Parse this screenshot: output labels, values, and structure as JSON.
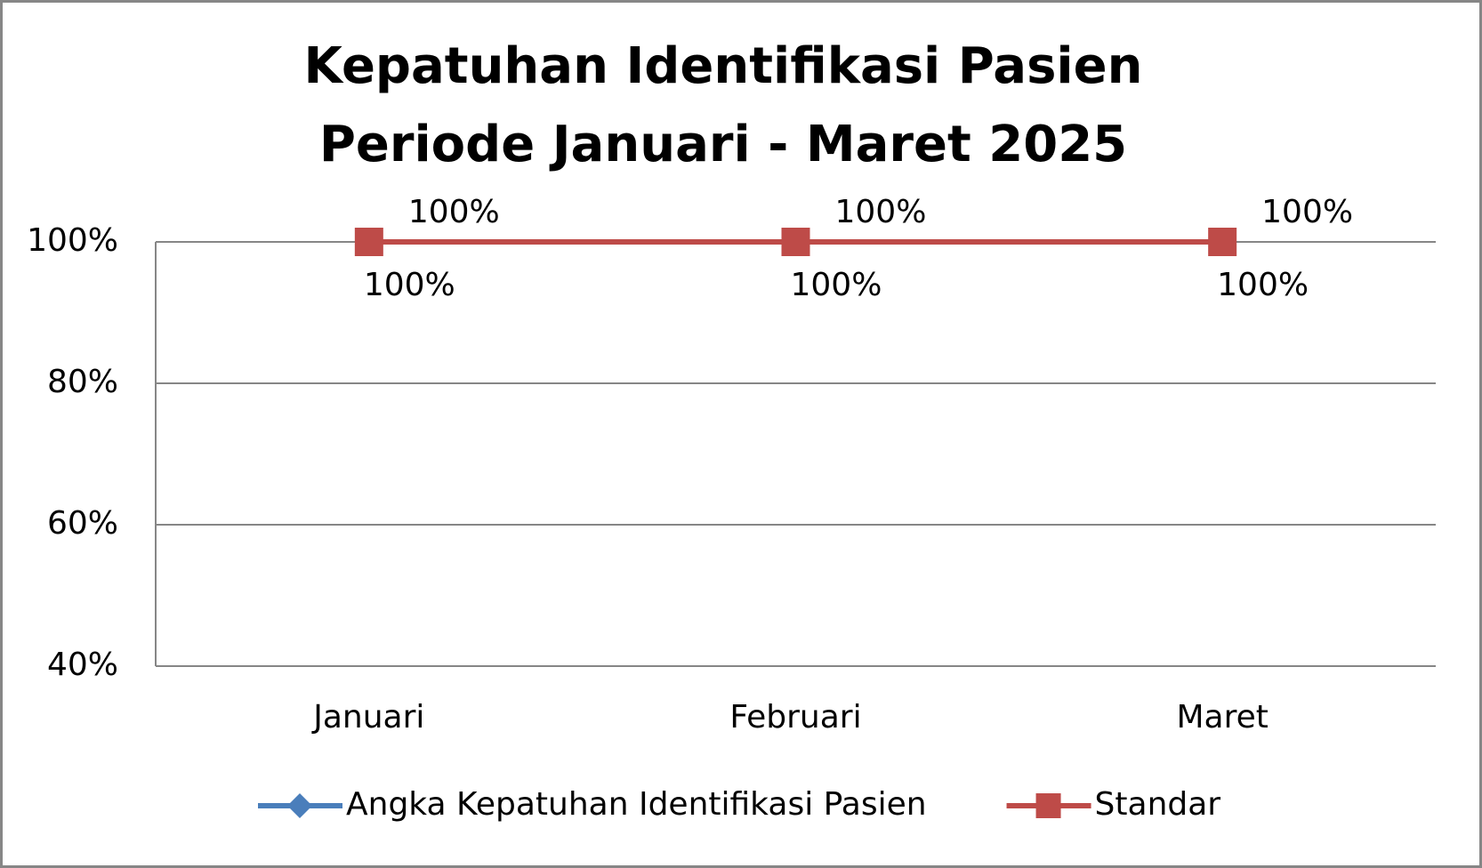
{
  "chart_data": {
    "type": "line",
    "title": "Kepatuhan Identifikasi Pasien",
    "subtitle": "Periode Januari - Maret 2025",
    "categories": [
      "Januari",
      "Februari",
      "Maret"
    ],
    "series": [
      {
        "name": "Angka Kepatuhan Identifikasi Pasien",
        "color": "#4a7ebb",
        "marker": "diamond",
        "values": [
          100,
          100,
          100
        ],
        "value_labels": [
          "100%",
          "100%",
          "100%"
        ]
      },
      {
        "name": "Standar",
        "color": "#be4b48",
        "marker": "square",
        "values": [
          100,
          100,
          100
        ],
        "value_labels": [
          "100%",
          "100%",
          "100%"
        ]
      }
    ],
    "ylim": [
      40,
      100
    ],
    "yticks": [
      {
        "value": 40,
        "label": "40%"
      },
      {
        "value": 60,
        "label": "60%"
      },
      {
        "value": 80,
        "label": "80%"
      },
      {
        "value": 100,
        "label": "100%"
      }
    ],
    "grid": true,
    "legend": "bottom"
  }
}
